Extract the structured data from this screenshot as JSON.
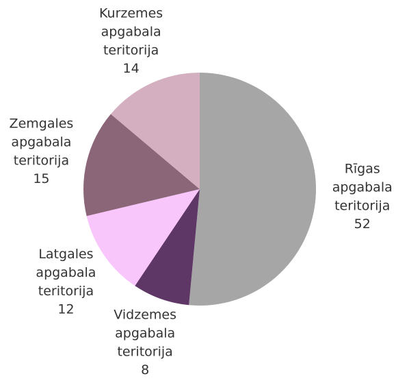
{
  "chart_data": {
    "type": "pie",
    "categories": [
      "Rīgas apgabala teritorija",
      "Vidzemes apgabala teritorija",
      "Latgales apgabala teritorija",
      "Zemgales apgabala teritorija",
      "Kurzemes apgabala teritorija"
    ],
    "values": [
      52,
      8,
      12,
      15,
      14
    ],
    "colors": [
      "#a6a6a6",
      "#5e3766",
      "#f9c6fc",
      "#8b6679",
      "#d4afc0"
    ]
  }
}
